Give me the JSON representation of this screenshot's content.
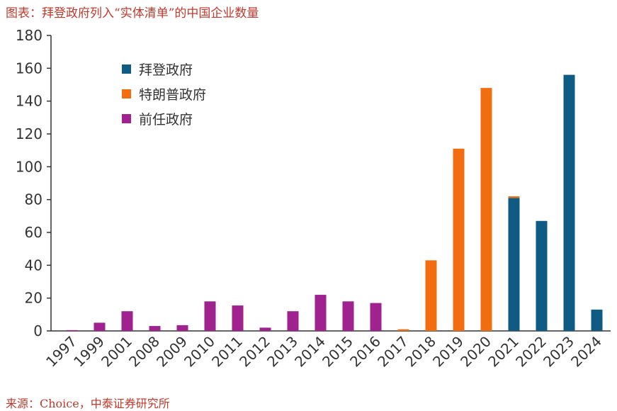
{
  "title": "图表：拜登政府列入“实体清单”的中国企业数量",
  "source": "来源：Choice，中泰证券研究所",
  "colors": {
    "biden": "#0f5b84",
    "trump": "#f26d10",
    "previous": "#a0228f",
    "axis": "#333333"
  },
  "chart_data": {
    "type": "bar",
    "categories": [
      "1997",
      "1999",
      "2001",
      "2008",
      "2009",
      "2010",
      "2011",
      "2012",
      "2013",
      "2014",
      "2015",
      "2016",
      "2017",
      "2018",
      "2019",
      "2020",
      "2021",
      "2022",
      "2023",
      "2024"
    ],
    "series": [
      {
        "name": "拜登政府",
        "color": "#0f5b84",
        "values": [
          0,
          0,
          0,
          0,
          0,
          0,
          0,
          0,
          0,
          0,
          0,
          0,
          0,
          0,
          0,
          0,
          81,
          67,
          156,
          13
        ]
      },
      {
        "name": "特朗普政府",
        "color": "#f26d10",
        "values": [
          0,
          0,
          0,
          0,
          0,
          0,
          0,
          0,
          0,
          0,
          0,
          0,
          1,
          43,
          111,
          148,
          1,
          0,
          0,
          0
        ]
      },
      {
        "name": "前任政府",
        "color": "#a0228f",
        "values": [
          0.5,
          5,
          12,
          3,
          3.5,
          18,
          15.5,
          2,
          12,
          22,
          18,
          17,
          0,
          0,
          0,
          0,
          0,
          0,
          0,
          0
        ]
      }
    ],
    "yticks": [
      "0",
      "20",
      "40",
      "60",
      "80",
      "100",
      "120",
      "140",
      "160",
      "180"
    ],
    "ylim": [
      0,
      180
    ],
    "stacked": true,
    "legend_position": "top-left",
    "grid": false
  }
}
